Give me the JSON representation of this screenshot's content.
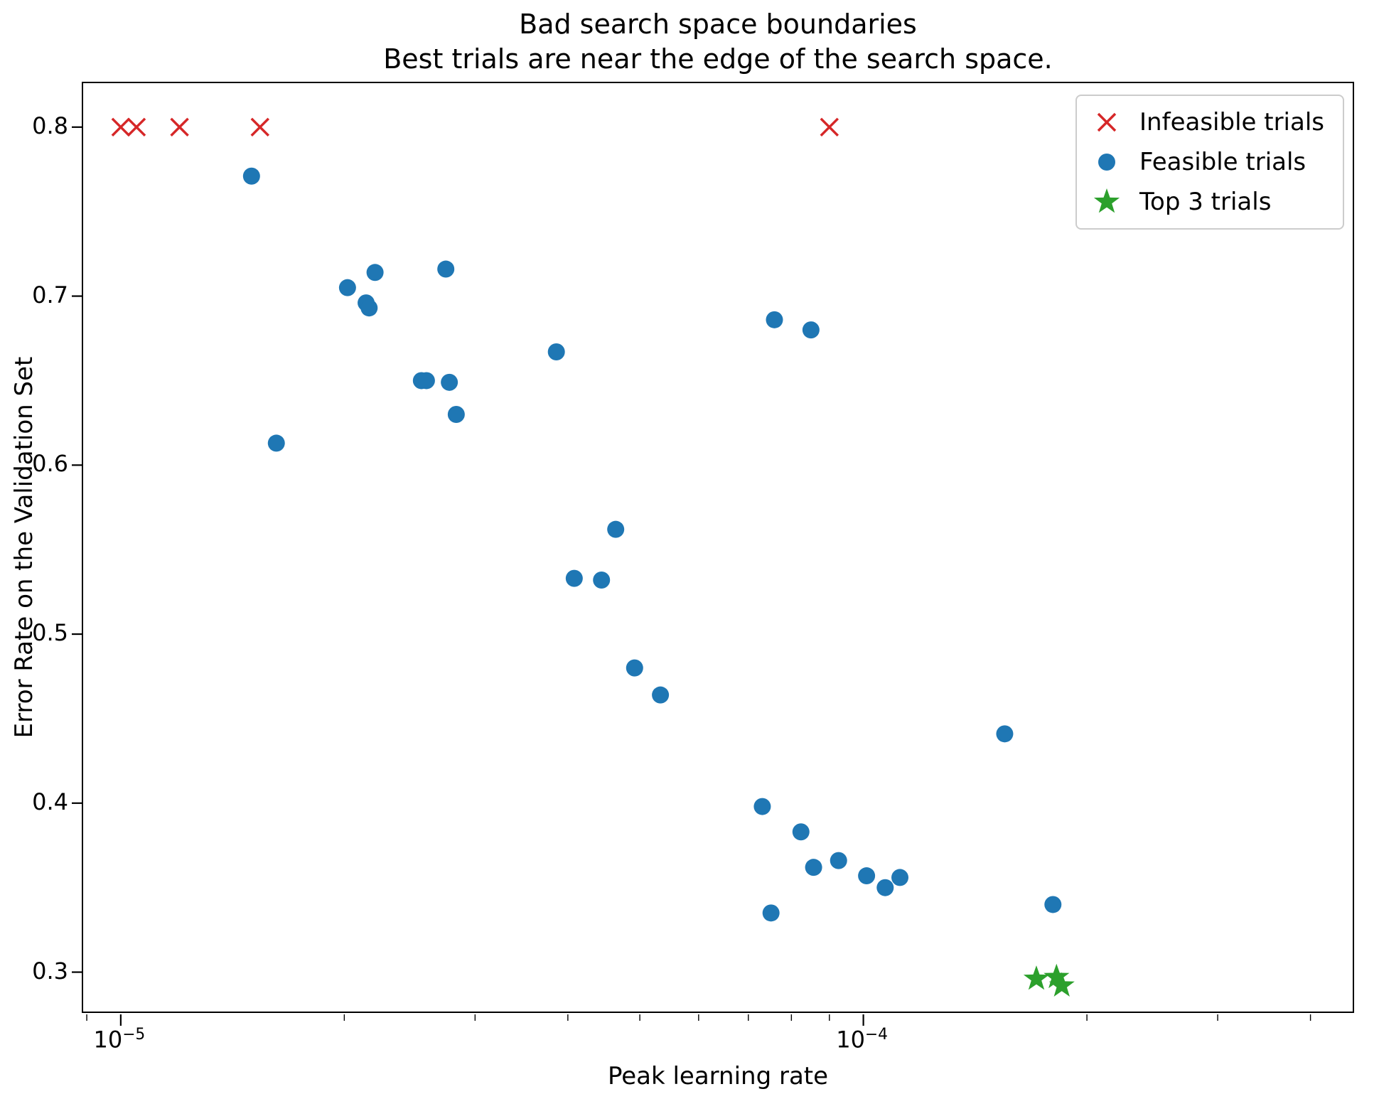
{
  "title": {
    "line1": "Bad search space boundaries",
    "line2": "Best trials are near the edge of the search space."
  },
  "axes": {
    "xlabel": "Peak learning rate",
    "ylabel": "Error Rate on the Validation Set"
  },
  "chart_data": {
    "type": "scatter",
    "title": "Bad search space boundaries — Best trials are near the edge of the search space.",
    "xlabel": "Peak learning rate",
    "ylabel": "Error Rate on the Validation Set",
    "xscale": "log",
    "grid": false,
    "legend_position": "upper right",
    "xlim": [
      8.9e-06,
      0.00046
    ],
    "ylim": [
      0.275,
      0.826
    ],
    "yticks": [
      0.8,
      0.7,
      0.6,
      0.5,
      0.4,
      0.3
    ],
    "xticks": [
      {
        "value": 1e-05,
        "base": "10",
        "exp": "−5"
      },
      {
        "value": 0.0001,
        "base": "10",
        "exp": "−4"
      }
    ],
    "series": [
      {
        "name": "Infeasible trials",
        "marker": "x",
        "color": "#d62728",
        "points": [
          [
            1e-05,
            0.8
          ],
          [
            1.05e-05,
            0.8
          ],
          [
            1.2e-05,
            0.8
          ],
          [
            1.54e-05,
            0.8
          ],
          [
            9e-05,
            0.8
          ]
        ]
      },
      {
        "name": "Feasible trials",
        "marker": "circle",
        "color": "#1f77b4",
        "points": [
          [
            1.5e-05,
            0.771
          ],
          [
            2.02e-05,
            0.705
          ],
          [
            2.2e-05,
            0.714
          ],
          [
            2.14e-05,
            0.696
          ],
          [
            2.16e-05,
            0.693
          ],
          [
            2.74e-05,
            0.716
          ],
          [
            2.54e-05,
            0.65
          ],
          [
            2.58e-05,
            0.65
          ],
          [
            2.77e-05,
            0.649
          ],
          [
            2.83e-05,
            0.63
          ],
          [
            1.62e-05,
            0.613
          ],
          [
            3.86e-05,
            0.667
          ],
          [
            7.59e-05,
            0.686
          ],
          [
            8.5e-05,
            0.68
          ],
          [
            4.64e-05,
            0.562
          ],
          [
            4.08e-05,
            0.533
          ],
          [
            4.44e-05,
            0.532
          ],
          [
            4.92e-05,
            0.48
          ],
          [
            5.33e-05,
            0.464
          ],
          [
            0.000155,
            0.441
          ],
          [
            7.31e-05,
            0.398
          ],
          [
            8.24e-05,
            0.383
          ],
          [
            8.57e-05,
            0.362
          ],
          [
            9.26e-05,
            0.366
          ],
          [
            0.000101,
            0.357
          ],
          [
            0.000107,
            0.35
          ],
          [
            0.000112,
            0.356
          ],
          [
            7.51e-05,
            0.335
          ],
          [
            0.00018,
            0.34
          ]
        ]
      },
      {
        "name": "Top 3 trials",
        "marker": "star",
        "color": "#2ca02c",
        "points": [
          [
            0.000171,
            0.296
          ],
          [
            0.000182,
            0.297
          ],
          [
            0.000185,
            0.292
          ]
        ]
      }
    ]
  }
}
